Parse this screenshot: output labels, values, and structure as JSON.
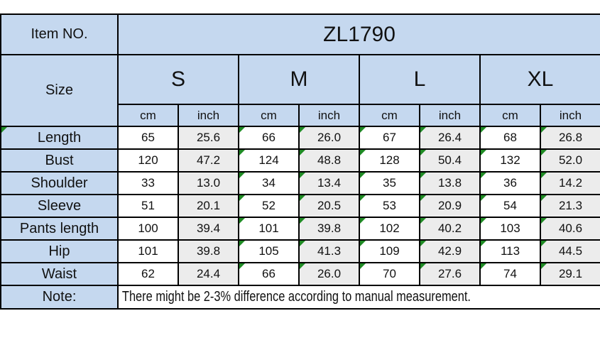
{
  "table": {
    "item_no_label": "Item NO.",
    "item_no_value": "ZL1790",
    "size_label": "Size",
    "sizes": [
      "S",
      "M",
      "L",
      "XL"
    ],
    "unit_labels": [
      "cm",
      "inch",
      "cm",
      "inch",
      "cm",
      "inch",
      "cm",
      "inch"
    ],
    "rows": [
      {
        "label": "Length",
        "label_flag": true,
        "values": [
          "65",
          "25.6",
          "66",
          "26.0",
          "67",
          "26.4",
          "68",
          "26.8"
        ]
      },
      {
        "label": "Bust",
        "label_flag": false,
        "values": [
          "120",
          "47.2",
          "124",
          "48.8",
          "128",
          "50.4",
          "132",
          "52.0"
        ]
      },
      {
        "label": "Shoulder",
        "label_flag": false,
        "values": [
          "33",
          "13.0",
          "34",
          "13.4",
          "35",
          "13.8",
          "36",
          "14.2"
        ]
      },
      {
        "label": "Sleeve",
        "label_flag": false,
        "values": [
          "51",
          "20.1",
          "52",
          "20.5",
          "53",
          "20.9",
          "54",
          "21.3"
        ]
      },
      {
        "label": "Pants length",
        "label_flag": false,
        "values": [
          "100",
          "39.4",
          "101",
          "39.8",
          "102",
          "40.2",
          "103",
          "40.6"
        ]
      },
      {
        "label": "Hip",
        "label_flag": false,
        "values": [
          "101",
          "39.8",
          "105",
          "41.3",
          "109",
          "42.9",
          "113",
          "44.5"
        ]
      },
      {
        "label": "Waist",
        "label_flag": false,
        "values": [
          "62",
          "24.4",
          "66",
          "26.0",
          "70",
          "27.6",
          "74",
          "29.1"
        ]
      }
    ],
    "note_label": "Note:",
    "note_text": "There might be 2-3% difference according to manual measurement."
  },
  "colors": {
    "header_blue": "#c5d8ef",
    "inch_gray": "#ececec",
    "flag_green": "#1f8b24",
    "border_black": "#000000"
  }
}
